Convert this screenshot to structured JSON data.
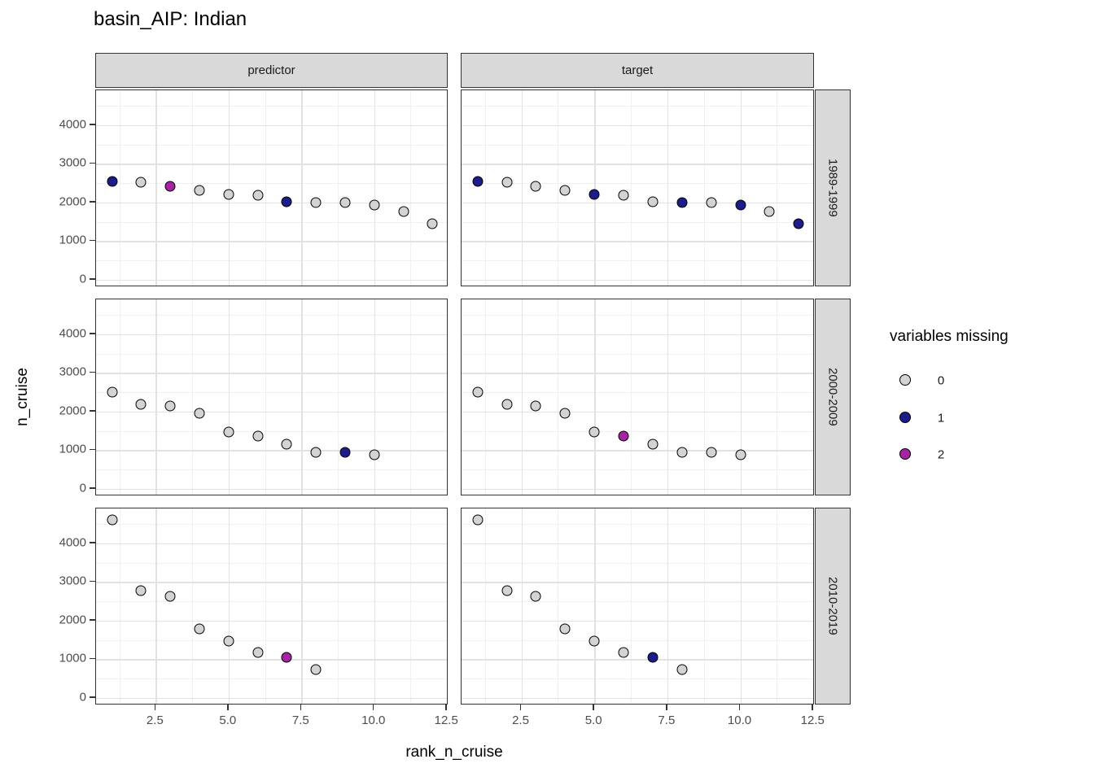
{
  "chart_data": {
    "type": "scatter",
    "title": "basin_AIP: Indian",
    "xlabel": "rank_n_cruise",
    "ylabel": "n_cruise",
    "facet_columns": [
      "predictor",
      "target"
    ],
    "facet_rows": [
      "1989-1999",
      "2000-2009",
      "2010-2019"
    ],
    "x_tick_labels": [
      "2.5",
      "5.0",
      "7.5",
      "10.0",
      "12.5"
    ],
    "x_tick_values": [
      2.5,
      5.0,
      7.5,
      10.0,
      12.5
    ],
    "x_minor_values": [
      1.25,
      3.75,
      6.25,
      8.75,
      11.25
    ],
    "y_tick_labels": [
      "0",
      "1000",
      "2000",
      "3000",
      "4000"
    ],
    "y_tick_values": [
      0,
      1000,
      2000,
      3000,
      4000
    ],
    "y_minor_values": [
      500,
      1500,
      2500,
      3500,
      4500
    ],
    "x_domain": [
      0.45,
      12.55
    ],
    "y_domain": [
      -190,
      4905
    ],
    "grid": true,
    "legend": {
      "title": "variables missing",
      "position": "right",
      "entries": [
        {
          "label": "0",
          "color": "#d3d3d3"
        },
        {
          "label": "1",
          "color": "#1c1c8a"
        },
        {
          "label": "2",
          "color": "#a424a4"
        }
      ]
    },
    "rows": [
      {
        "facet": "1989-1999",
        "x": [
          1,
          2,
          3,
          4,
          5,
          6,
          7,
          8,
          9,
          10,
          11,
          12
        ],
        "n_cruise": [
          2540,
          2525,
          2420,
          2320,
          2210,
          2190,
          2015,
          1995,
          1990,
          1940,
          1760,
          1450
        ],
        "missing_predictor": [
          1,
          0,
          2,
          0,
          0,
          0,
          1,
          0,
          0,
          0,
          0,
          0
        ],
        "missing_target": [
          1,
          0,
          0,
          0,
          1,
          0,
          0,
          1,
          0,
          1,
          0,
          1
        ]
      },
      {
        "facet": "2000-2009",
        "x": [
          1,
          2,
          3,
          4,
          5,
          6,
          7,
          8,
          9,
          10
        ],
        "n_cruise": [
          2500,
          2185,
          2145,
          1955,
          1480,
          1370,
          1160,
          950,
          945,
          880
        ],
        "missing_predictor": [
          0,
          0,
          0,
          0,
          0,
          0,
          0,
          0,
          1,
          0
        ],
        "missing_target": [
          0,
          0,
          0,
          0,
          0,
          2,
          0,
          0,
          0,
          0
        ]
      },
      {
        "facet": "2010-2019",
        "x": [
          1,
          2,
          3,
          4,
          5,
          6,
          7,
          8
        ],
        "n_cruise": [
          4610,
          2770,
          2640,
          1790,
          1480,
          1180,
          1050,
          740
        ],
        "missing_predictor": [
          0,
          0,
          0,
          0,
          0,
          0,
          2,
          0
        ],
        "missing_target": [
          0,
          0,
          0,
          0,
          0,
          0,
          1,
          0
        ]
      }
    ],
    "colors": {
      "strip_background": "#d9d9d9",
      "panel_border": "#333333",
      "grid_major": "#e2e2e2",
      "grid_minor": "#f0f0f0",
      "tick_label": "#4d4d4d",
      "point_stroke": "#000000"
    }
  }
}
